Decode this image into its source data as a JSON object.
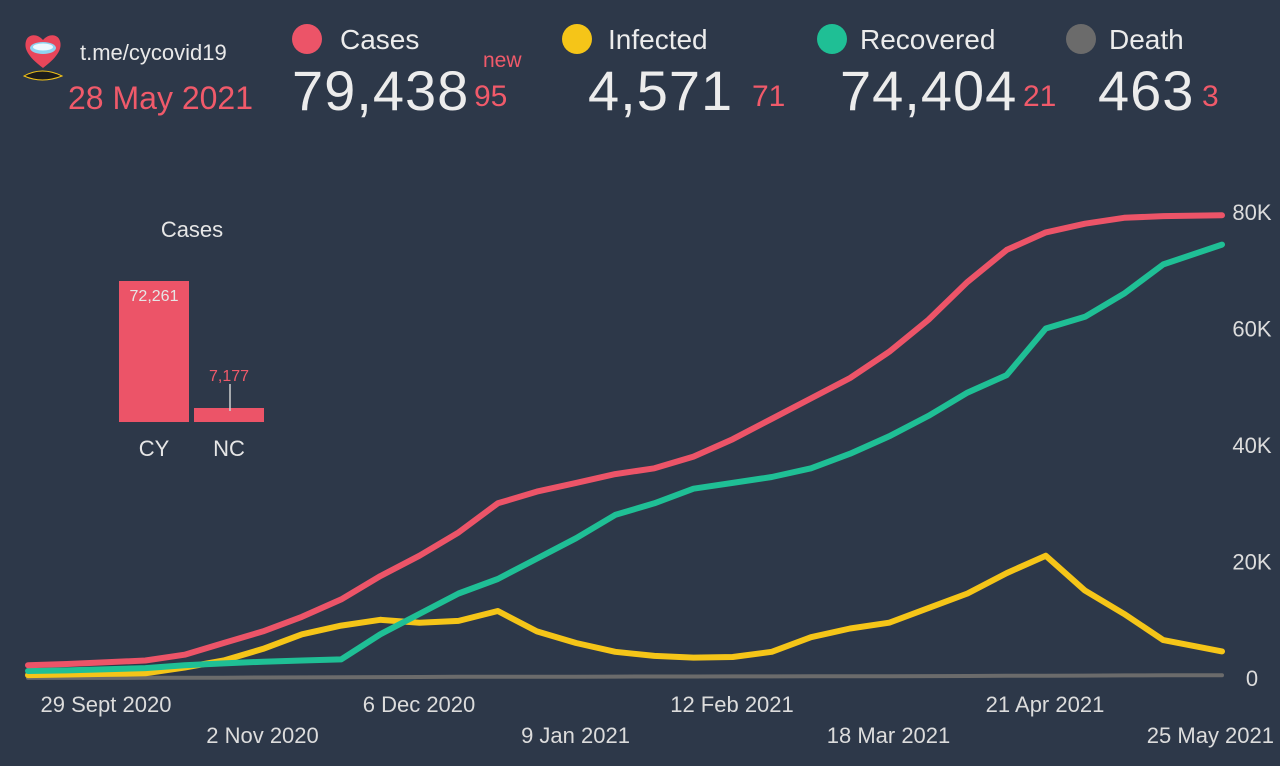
{
  "header": {
    "site": "t.me/cycovid19",
    "date": "28 May 2021",
    "new_word": "new"
  },
  "stats": [
    {
      "label": "Cases",
      "value": "79,438",
      "new": "95",
      "color": "#ec5468"
    },
    {
      "label": "Infected",
      "value": "4,571",
      "new": "71",
      "color": "#f5c518"
    },
    {
      "label": "Recovered",
      "value": "74,404",
      "new": "21",
      "color": "#1fbf95"
    },
    {
      "label": "Death",
      "value": "463",
      "new": "3",
      "color": "#6b6b6b"
    }
  ],
  "mini_chart": {
    "title": "Cases",
    "categories": [
      "CY",
      "NC"
    ],
    "values": [
      72261,
      7177
    ],
    "value_labels": [
      "72,261",
      "7,177"
    ],
    "color": "#ec5468"
  },
  "chart_data": {
    "type": "line",
    "y_axis_position": "right",
    "ylim": [
      0,
      80000
    ],
    "ytick_labels": [
      "0",
      "20K",
      "40K",
      "60K",
      "80K"
    ],
    "xtick_labels_row1": [
      "29 Sept 2020",
      "6 Dec 2020",
      "12 Feb 2021",
      "21 Apr 2021"
    ],
    "xtick_labels_row2": [
      "2 Nov 2020",
      "9 Jan 2021",
      "18 Mar 2021",
      "25 May 2021"
    ],
    "x_dates": [
      "2020-09-26",
      "2020-10-04",
      "2020-10-12",
      "2020-10-20",
      "2020-10-28",
      "2020-11-05",
      "2020-11-13",
      "2020-11-21",
      "2020-11-29",
      "2020-12-07",
      "2020-12-15",
      "2020-12-23",
      "2020-12-31",
      "2021-01-08",
      "2021-01-16",
      "2021-01-24",
      "2021-02-01",
      "2021-02-09",
      "2021-02-17",
      "2021-02-25",
      "2021-03-05",
      "2021-03-13",
      "2021-03-21",
      "2021-03-29",
      "2021-04-06",
      "2021-04-14",
      "2021-04-22",
      "2021-04-30",
      "2021-05-08",
      "2021-05-16",
      "2021-05-28"
    ],
    "series": [
      {
        "name": "Cases",
        "color": "#ec5468",
        "values": [
          2200,
          2400,
          2700,
          3000,
          4000,
          6000,
          8000,
          10500,
          13500,
          17500,
          21000,
          25000,
          30000,
          32000,
          33500,
          35000,
          36000,
          38000,
          41000,
          44500,
          48000,
          51500,
          56000,
          61500,
          68000,
          73500,
          76500,
          78000,
          79000,
          79300,
          79438
        ]
      },
      {
        "name": "Infected",
        "color": "#f5c518",
        "values": [
          500,
          600,
          700,
          800,
          1800,
          3000,
          5000,
          7500,
          9000,
          10000,
          9500,
          9800,
          11500,
          8000,
          6000,
          4500,
          3800,
          3500,
          3600,
          4500,
          7000,
          8500,
          9500,
          12000,
          14500,
          18000,
          21000,
          15000,
          11000,
          6500,
          4571
        ]
      },
      {
        "name": "Recovered",
        "color": "#1fbf95",
        "values": [
          1200,
          1300,
          1500,
          1700,
          2200,
          2500,
          2800,
          3000,
          3200,
          7500,
          11000,
          14500,
          17000,
          20500,
          24000,
          28000,
          30000,
          32500,
          33500,
          34500,
          36000,
          38500,
          41500,
          45000,
          49000,
          52000,
          60000,
          62000,
          66000,
          71000,
          74404
        ]
      },
      {
        "name": "Death",
        "color": "#6b6b6b",
        "values": [
          20,
          20,
          25,
          30,
          40,
          60,
          90,
          110,
          130,
          160,
          180,
          200,
          210,
          220,
          230,
          240,
          250,
          260,
          270,
          280,
          290,
          300,
          310,
          330,
          350,
          380,
          400,
          420,
          440,
          455,
          463
        ]
      }
    ]
  }
}
